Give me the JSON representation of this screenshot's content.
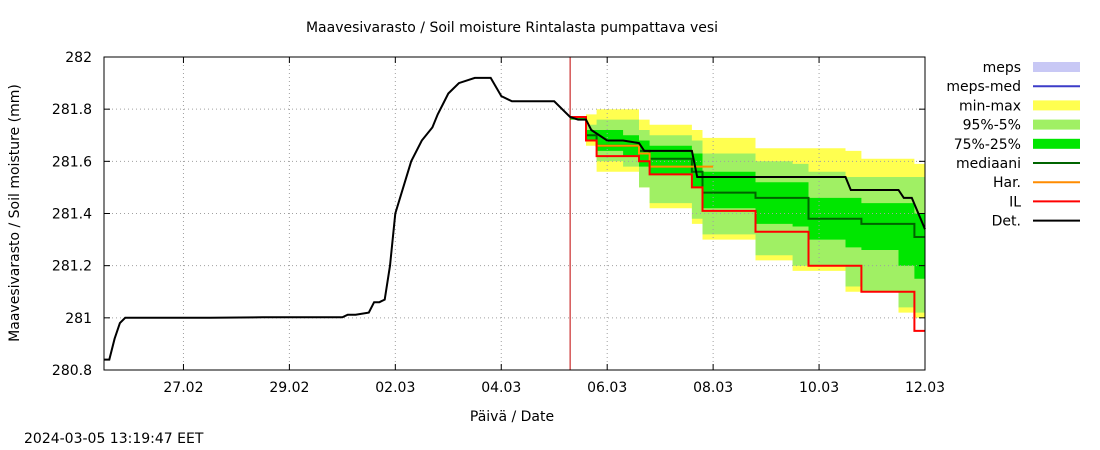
{
  "chart_data": {
    "type": "line",
    "title": "Maavesivarasto / Soil moisture   Rintalasta pumpattava vesi",
    "xlabel": "Päivä / Date",
    "ylabel": "Maavesivarasto / Soil moisture (mm)",
    "timestamp": "2024-03-05 13:19:47 EET",
    "x_range_days": [
      25.5,
      41.0
    ],
    "ylim": [
      280.8,
      282.0
    ],
    "grid": true,
    "legend_position": "right",
    "y_ticks": [
      {
        "value": 282.0,
        "label": "282"
      },
      {
        "value": 281.8,
        "label": "281.8"
      },
      {
        "value": 281.6,
        "label": "281.6"
      },
      {
        "value": 281.4,
        "label": "281.4"
      },
      {
        "value": 281.2,
        "label": "281.2"
      },
      {
        "value": 281.0,
        "label": "281"
      },
      {
        "value": 280.8,
        "label": "280.8"
      }
    ],
    "x_ticks": [
      {
        "day": 27,
        "label": "27.02"
      },
      {
        "day": 29,
        "label": "29.02"
      },
      {
        "day": 31,
        "label": "02.03"
      },
      {
        "day": 33,
        "label": "04.03"
      },
      {
        "day": 35,
        "label": "06.03"
      },
      {
        "day": 37,
        "label": "08.03"
      },
      {
        "day": 39,
        "label": "10.03"
      },
      {
        "day": 41,
        "label": "12.03"
      }
    ],
    "forecast_start_day": 34.3,
    "legend": [
      {
        "label": "meps",
        "kind": "box",
        "color": "#c8c8f5"
      },
      {
        "label": "meps-med",
        "kind": "line",
        "color": "#3c3cc8"
      },
      {
        "label": "min-max",
        "kind": "box",
        "color": "#ffff50"
      },
      {
        "label": "95%-5%",
        "kind": "box",
        "color": "#a0f064"
      },
      {
        "label": "75%-25%",
        "kind": "box",
        "color": "#00e600"
      },
      {
        "label": "mediaani",
        "kind": "line",
        "color": "#006400"
      },
      {
        "label": "Har.",
        "kind": "line",
        "color": "#ff8c00"
      },
      {
        "label": "IL",
        "kind": "line",
        "color": "#ff0000"
      },
      {
        "label": "Det.",
        "kind": "line",
        "color": "#000000"
      }
    ],
    "colors": {
      "minmax": "#ffff50",
      "p95_5": "#a0f064",
      "p75_25": "#00e600",
      "median": "#006400",
      "har": "#ff8c00",
      "il": "#ff0000",
      "det": "#000000",
      "forecast_line": "#c00000",
      "grid": "#a0a0a0"
    },
    "series": {
      "det": {
        "x": [
          25.5,
          25.6,
          25.7,
          25.8,
          25.9,
          26.0,
          27.5,
          28.5,
          30.0,
          30.1,
          30.2,
          30.25,
          30.5,
          30.6,
          30.7,
          30.8,
          30.9,
          31.0,
          31.3,
          31.5,
          31.7,
          31.8,
          31.9,
          32.0,
          32.2,
          32.5,
          32.6,
          32.8,
          33.0,
          33.2,
          33.3,
          33.5,
          34.0,
          34.3,
          34.45,
          34.6,
          34.7,
          35.0,
          35.3,
          35.6,
          35.7,
          36.3,
          36.6,
          36.7,
          37.5,
          37.6,
          38.5,
          38.6,
          39.5,
          39.6,
          40.5,
          40.6,
          40.75,
          41.0
        ],
        "y": [
          280.84,
          280.84,
          280.92,
          280.98,
          281.0,
          281.0,
          281.0,
          281.002,
          281.002,
          281.012,
          281.012,
          281.012,
          281.02,
          281.06,
          281.06,
          281.07,
          281.2,
          281.4,
          281.6,
          281.68,
          281.73,
          281.78,
          281.82,
          281.86,
          281.9,
          281.92,
          281.92,
          281.92,
          281.85,
          281.83,
          281.83,
          281.83,
          281.83,
          281.77,
          281.76,
          281.76,
          281.72,
          281.68,
          281.68,
          281.67,
          281.64,
          281.64,
          281.64,
          281.54,
          281.54,
          281.54,
          281.54,
          281.54,
          281.54,
          281.49,
          281.49,
          281.46,
          281.46,
          281.34
        ]
      },
      "il": {
        "x": [
          34.3,
          34.6,
          34.8,
          35.0,
          35.3,
          35.6,
          35.8,
          36.3,
          36.6,
          36.8,
          37.5,
          37.8,
          38.5,
          38.8,
          39.5,
          39.8,
          40.5,
          40.8,
          41.0
        ],
        "y": [
          281.77,
          281.68,
          281.62,
          281.62,
          281.62,
          281.6,
          281.55,
          281.55,
          281.5,
          281.41,
          281.41,
          281.33,
          281.33,
          281.2,
          281.2,
          281.1,
          281.1,
          280.95,
          280.95
        ]
      },
      "har": {
        "x": [
          34.3,
          34.6,
          34.8,
          35.3,
          35.6,
          35.8,
          36.3,
          36.6,
          36.8,
          37.0
        ],
        "y": [
          281.77,
          281.68,
          281.66,
          281.66,
          281.63,
          281.58,
          281.58,
          281.58,
          281.58,
          281.58
        ]
      },
      "median": {
        "x": [
          34.3,
          34.6,
          34.8,
          35.3,
          35.6,
          35.8,
          36.3,
          36.6,
          36.8,
          37.5,
          37.8,
          38.5,
          38.8,
          39.5,
          39.8,
          40.5,
          40.8,
          41.0
        ],
        "y": [
          281.77,
          281.7,
          281.66,
          281.66,
          281.64,
          281.61,
          281.61,
          281.56,
          281.48,
          281.48,
          281.46,
          281.46,
          281.38,
          281.38,
          281.36,
          281.36,
          281.31,
          281.31
        ]
      },
      "minmax": {
        "x": [
          34.3,
          34.6,
          34.8,
          35.3,
          35.6,
          35.8,
          36.3,
          36.6,
          36.8,
          37.5,
          37.8,
          38.5,
          38.8,
          39.5,
          39.8,
          40.5,
          40.8,
          41.0
        ],
        "lo": [
          281.76,
          281.66,
          281.56,
          281.56,
          281.5,
          281.42,
          281.42,
          281.36,
          281.3,
          281.3,
          281.22,
          281.18,
          281.18,
          281.1,
          281.1,
          281.02,
          281.0,
          281.0
        ],
        "hi": [
          281.77,
          281.78,
          281.8,
          281.8,
          281.76,
          281.74,
          281.74,
          281.72,
          281.69,
          281.69,
          281.65,
          281.65,
          281.65,
          281.64,
          281.61,
          281.61,
          281.59,
          281.58
        ]
      },
      "p95_5": {
        "x": [
          34.3,
          34.6,
          34.8,
          35.3,
          35.6,
          35.8,
          36.3,
          36.6,
          36.8,
          37.5,
          37.8,
          38.5,
          38.8,
          39.5,
          39.8,
          40.5,
          40.8,
          41.0
        ],
        "lo": [
          281.76,
          281.68,
          281.6,
          281.58,
          281.5,
          281.44,
          281.44,
          281.38,
          281.32,
          281.32,
          281.24,
          281.2,
          281.2,
          281.12,
          281.1,
          281.04,
          281.02,
          281.0
        ],
        "hi": [
          281.77,
          281.74,
          281.76,
          281.76,
          281.72,
          281.7,
          281.7,
          281.68,
          281.63,
          281.63,
          281.6,
          281.59,
          281.56,
          281.54,
          281.54,
          281.54,
          281.54,
          281.54
        ]
      },
      "p75_25": {
        "x": [
          34.3,
          34.6,
          34.8,
          35.3,
          35.6,
          35.8,
          36.3,
          36.6,
          36.8,
          37.5,
          37.8,
          38.5,
          38.8,
          39.5,
          39.8,
          40.5,
          40.8,
          41.0
        ],
        "lo": [
          281.76,
          281.68,
          281.64,
          281.62,
          281.58,
          281.55,
          281.55,
          281.5,
          281.42,
          281.42,
          281.36,
          281.35,
          281.3,
          281.27,
          281.26,
          281.2,
          281.15,
          281.14
        ],
        "hi": [
          281.77,
          281.72,
          281.72,
          281.7,
          281.68,
          281.66,
          281.66,
          281.63,
          281.56,
          281.56,
          281.52,
          281.52,
          281.46,
          281.46,
          281.44,
          281.44,
          281.4,
          281.4
        ]
      }
    }
  }
}
